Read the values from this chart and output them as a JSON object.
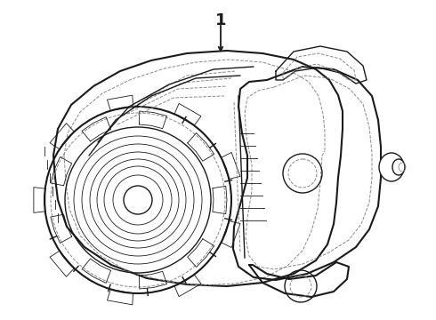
{
  "background_color": "#ffffff",
  "line_color": "#1a1a1a",
  "dashed_color": "#888888",
  "label_number": "1",
  "figsize": [
    4.9,
    3.6
  ],
  "dpi": 100,
  "lw_main": 1.5,
  "lw_med": 1.0,
  "lw_thin": 0.6,
  "lw_dash": 0.7
}
